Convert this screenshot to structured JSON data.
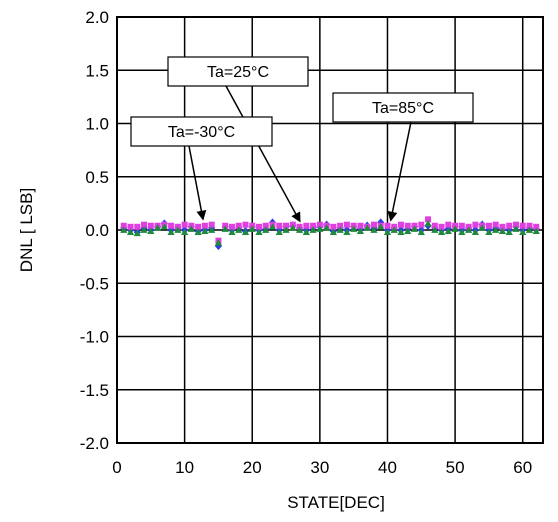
{
  "chart_data": {
    "type": "scatter",
    "title": "",
    "xlabel": "STATE[DEC]",
    "ylabel": "DNL [ LSB]",
    "xlim": [
      0,
      63
    ],
    "ylim": [
      -2.0,
      2.0
    ],
    "x_ticks": [
      0,
      10,
      20,
      30,
      40,
      50,
      60
    ],
    "y_ticks": [
      2.0,
      1.5,
      1.0,
      0.5,
      0.0,
      -0.5,
      -1.0,
      -1.5,
      -2.0
    ],
    "x_tick_labels": [
      "0",
      "10",
      "20",
      "30",
      "40",
      "50",
      "60"
    ],
    "y_tick_labels": [
      "2.0",
      "1.5",
      "1.0",
      "0.5",
      "0.0",
      "-0.5",
      "-1.0",
      "-1.5",
      "-2.0"
    ],
    "grid": true,
    "x": [
      1,
      2,
      3,
      4,
      5,
      6,
      7,
      8,
      9,
      10,
      11,
      12,
      13,
      14,
      15,
      16,
      17,
      18,
      19,
      20,
      21,
      22,
      23,
      24,
      25,
      26,
      27,
      28,
      29,
      30,
      31,
      32,
      33,
      34,
      35,
      36,
      37,
      38,
      39,
      40,
      41,
      42,
      43,
      44,
      45,
      46,
      47,
      48,
      49,
      50,
      51,
      52,
      53,
      54,
      55,
      56,
      57,
      58,
      59,
      60,
      61,
      62
    ],
    "series": [
      {
        "color": "#2E3FE0",
        "marker": "diamond",
        "values": [
          0.02,
          0.0,
          -0.02,
          0.02,
          0.0,
          0.03,
          0.06,
          0.0,
          0.02,
          0.0,
          0.03,
          -0.01,
          0.0,
          0.02,
          -0.15,
          0.03,
          0.0,
          0.02,
          -0.01,
          0.03,
          0.0,
          0.01,
          0.07,
          0.0,
          0.03,
          0.04,
          0.02,
          0.0,
          0.02,
          0.03,
          0.05,
          -0.01,
          0.02,
          0.0,
          0.03,
          0.01,
          0.04,
          0.02,
          0.07,
          0.0,
          0.02,
          0.0,
          0.01,
          0.03,
          0.0,
          0.04,
          0.02,
          0.0,
          0.01,
          0.03,
          0.0,
          0.02,
          0.0,
          0.05,
          0.0,
          0.02,
          0.01,
          0.0,
          0.03,
          0.0,
          0.02,
          0.01
        ]
      },
      {
        "color": "#E040E0",
        "marker": "square",
        "values": [
          0.04,
          0.03,
          0.03,
          0.05,
          0.04,
          0.04,
          0.05,
          0.04,
          0.03,
          0.05,
          0.04,
          0.03,
          0.04,
          0.05,
          -0.1,
          0.04,
          0.03,
          0.04,
          0.05,
          0.04,
          0.03,
          0.04,
          0.05,
          0.04,
          0.04,
          0.05,
          0.03,
          0.04,
          0.04,
          0.05,
          0.04,
          0.03,
          0.04,
          0.05,
          0.04,
          0.04,
          0.03,
          0.05,
          0.04,
          0.04,
          0.03,
          0.05,
          0.04,
          0.04,
          0.05,
          0.1,
          0.04,
          0.03,
          0.05,
          0.04,
          0.04,
          0.03,
          0.05,
          0.04,
          0.04,
          0.05,
          0.03,
          0.04,
          0.05,
          0.04,
          0.04,
          0.03
        ]
      },
      {
        "color": "#1E8A3C",
        "marker": "triangle",
        "values": [
          0.0,
          -0.02,
          -0.03,
          0.0,
          -0.01,
          0.02,
          0.03,
          -0.02,
          0.0,
          -0.02,
          0.01,
          -0.02,
          -0.01,
          0.0,
          -0.12,
          0.01,
          -0.02,
          0.0,
          -0.02,
          0.01,
          -0.02,
          0.0,
          0.03,
          -0.02,
          0.0,
          0.02,
          0.0,
          -0.02,
          0.0,
          0.01,
          0.02,
          -0.02,
          0.0,
          -0.02,
          0.01,
          -0.01,
          0.02,
          0.0,
          0.03,
          -0.02,
          0.0,
          -0.02,
          -0.01,
          0.01,
          -0.02,
          0.06,
          0.0,
          -0.02,
          -0.01,
          0.01,
          -0.02,
          0.0,
          -0.02,
          0.02,
          -0.02,
          0.0,
          -0.01,
          -0.02,
          0.01,
          -0.02,
          0.0,
          -0.01
        ]
      }
    ],
    "annotations": [
      {
        "text": "Ta=25°C",
        "target_x": 27,
        "target_y": 0.03
      },
      {
        "text": "Ta=-30°C",
        "target_x": 12.7,
        "target_y": 0.05
      },
      {
        "text": "Ta=85°C",
        "target_x": 40.5,
        "target_y": 0.04
      }
    ]
  }
}
